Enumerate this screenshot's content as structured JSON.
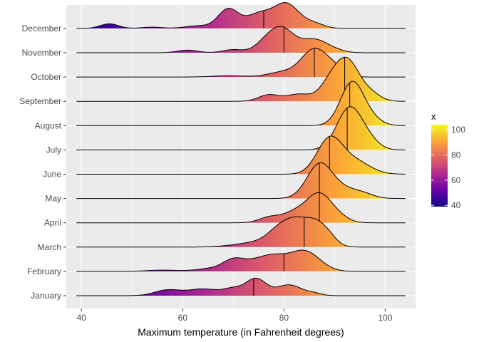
{
  "chart_data": {
    "type": "ridgeline",
    "xlabel": "Maximum temperature (in Fahrenheit degrees)",
    "ylabel": "",
    "xlim": [
      37,
      106
    ],
    "x_ticks": [
      40,
      60,
      80,
      100
    ],
    "grid": true,
    "fill": "gradient by x (plasma palette)",
    "legend": {
      "title": "x",
      "placement": "right",
      "ticks": [
        40,
        60,
        80,
        100
      ],
      "range": [
        39,
        104
      ],
      "colors": [
        "#0d0887",
        "#6a00a8",
        "#b12a90",
        "#e16462",
        "#fca636",
        "#f0f921"
      ]
    },
    "series": [
      {
        "name": "January",
        "median": 74,
        "peaks": [
          [
            57,
            0.22,
            2.5
          ],
          [
            64,
            0.26,
            3
          ],
          [
            70,
            0.25,
            2
          ],
          [
            74.5,
            0.65,
            2
          ],
          [
            81,
            0.42,
            2.5
          ],
          [
            86,
            0.08,
            1.5
          ]
        ]
      },
      {
        "name": "February",
        "median": 80,
        "peaks": [
          [
            56,
            0.05,
            3
          ],
          [
            66,
            0.12,
            3
          ],
          [
            70,
            0.38,
            2
          ],
          [
            74,
            0.32,
            2.5
          ],
          [
            78,
            0.48,
            2.5
          ],
          [
            84,
            0.8,
            3
          ]
        ]
      },
      {
        "name": "March",
        "median": 84,
        "peaks": [
          [
            70,
            0.05,
            3
          ],
          [
            75,
            0.18,
            3
          ],
          [
            79,
            0.6,
            2.2
          ],
          [
            82,
            0.65,
            2
          ],
          [
            86,
            1.0,
            2.5
          ],
          [
            89,
            0.15,
            1.5
          ]
        ]
      },
      {
        "name": "April",
        "median": 87,
        "peaks": [
          [
            77,
            0.2,
            2
          ],
          [
            82,
            0.38,
            2.5
          ],
          [
            87,
            1.1,
            2.5
          ],
          [
            91,
            0.15,
            2
          ]
        ]
      },
      {
        "name": "May",
        "median": 87,
        "peaks": [
          [
            87,
            1.3,
            2.5
          ],
          [
            92,
            0.35,
            3
          ],
          [
            96,
            0.1,
            2
          ]
        ]
      },
      {
        "name": "June",
        "median": 89,
        "peaks": [
          [
            89,
            1.35,
            2.5
          ],
          [
            94,
            0.5,
            3
          ]
        ]
      },
      {
        "name": "July",
        "median": 92.5,
        "peaks": [
          [
            93,
            1.65,
            2.5
          ],
          [
            97,
            0.25,
            2
          ]
        ]
      },
      {
        "name": "August",
        "median": 93,
        "peaks": [
          [
            93.5,
            1.7,
            2.3
          ],
          [
            97.5,
            0.2,
            2
          ]
        ]
      },
      {
        "name": "September",
        "median": 92,
        "peaks": [
          [
            77,
            0.25,
            2
          ],
          [
            83,
            0.28,
            2.5
          ],
          [
            89,
            0.6,
            2
          ],
          [
            92.5,
            1.55,
            2.3
          ],
          [
            97,
            0.3,
            2
          ]
        ]
      },
      {
        "name": "October",
        "median": 86,
        "peaks": [
          [
            69,
            0.05,
            3
          ],
          [
            80,
            0.2,
            3
          ],
          [
            86,
            1.05,
            2.5
          ],
          [
            90,
            0.3,
            2
          ]
        ]
      },
      {
        "name": "November",
        "median": 80,
        "peaks": [
          [
            61,
            0.1,
            2
          ],
          [
            70,
            0.12,
            2
          ],
          [
            76,
            0.25,
            2
          ],
          [
            79.5,
            0.95,
            2.5
          ],
          [
            86,
            0.5,
            2.5
          ],
          [
            90,
            0.08,
            2
          ]
        ]
      },
      {
        "name": "December",
        "median": 76,
        "peaks": [
          [
            45.5,
            0.18,
            1.8
          ],
          [
            54,
            0.05,
            2
          ],
          [
            63,
            0.1,
            2.5
          ],
          [
            69,
            0.75,
            2
          ],
          [
            75,
            0.55,
            2.5
          ],
          [
            80.5,
            0.95,
            2.5
          ],
          [
            86,
            0.18,
            2
          ]
        ]
      }
    ]
  }
}
